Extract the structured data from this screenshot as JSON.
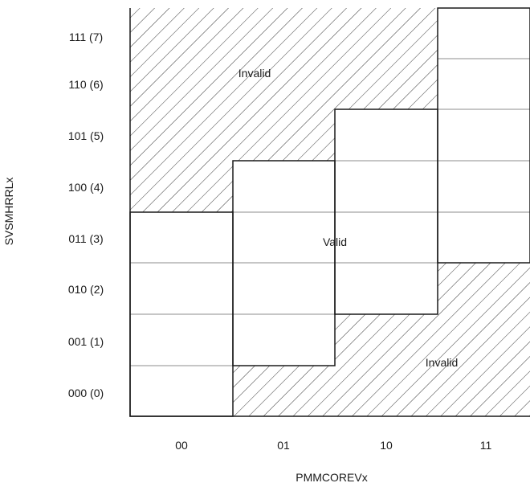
{
  "diagram": {
    "y_axis_title": "SVSMHRRLx",
    "x_axis_title": "PMMCOREVx",
    "y_ticks": [
      "111 (7)",
      "110 (6)",
      "101 (5)",
      "100 (4)",
      "011 (3)",
      "010 (2)",
      "001 (1)",
      "000 (0)"
    ],
    "x_ticks": [
      "00",
      "01",
      "10",
      "11"
    ],
    "region_labels": {
      "invalid_upper": "Invalid",
      "valid": "Valid",
      "invalid_lower": "Invalid"
    }
  }
}
